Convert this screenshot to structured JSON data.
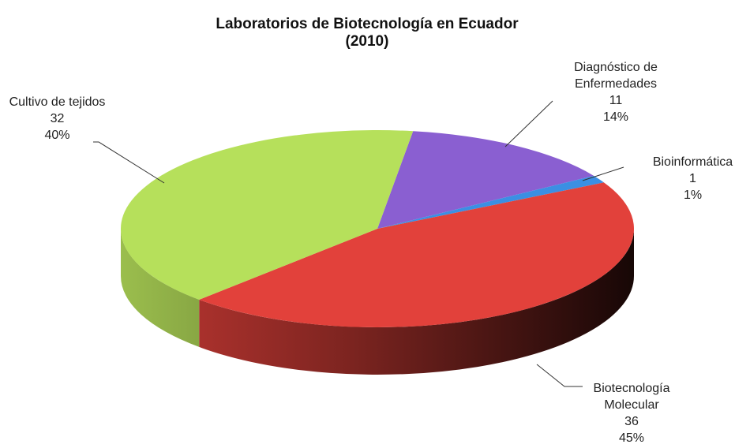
{
  "chart_data": {
    "type": "pie",
    "title": "Laboratorios de Biotecnología en Ecuador (2010)",
    "categories": [
      "Diagnóstico de Enfermedades",
      "Bioinformática",
      "Biotecnología Molecular",
      "Cultivo de tejidos"
    ],
    "values": [
      11,
      1,
      36,
      32
    ],
    "percent_labels": [
      "14%",
      "1%",
      "45%",
      "40%"
    ],
    "colors": [
      "#8a5fd1",
      "#3b8fe3",
      "#e2413b",
      "#b6e05b"
    ]
  }
}
